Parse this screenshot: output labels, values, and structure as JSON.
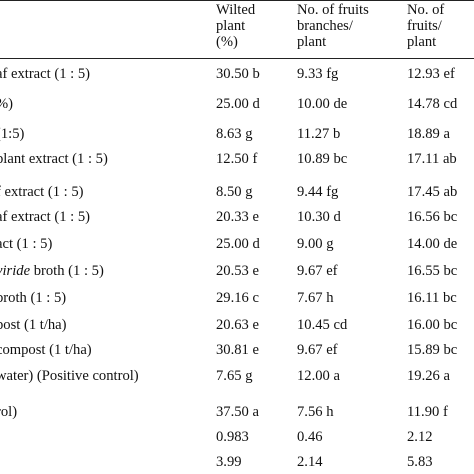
{
  "table": {
    "headers": [
      {
        "lines": [
          "Wilted",
          "plant",
          "(%)"
        ]
      },
      {
        "lines": [
          "No. of fruits",
          "branches/",
          "plant"
        ]
      },
      {
        "lines": [
          "No. of",
          "fruits/",
          "plant"
        ]
      }
    ],
    "rows": [
      {
        "treatment": "af extract (1 : 5)",
        "wilted": "30.50 b",
        "branches": "9.33 fg",
        "fruits": "12.93 ef"
      },
      {
        "treatment": "%)",
        "wilted": "25.00 d",
        "branches": "10.00 de",
        "fruits": "14.78 cd"
      },
      {
        "treatment": "(1:5)",
        "wilted": "8.63 g",
        "branches": "11.27 b",
        "fruits": "18.89 a"
      },
      {
        "treatment": " plant extract (1 : 5)",
        "wilted": "12.50 f",
        "branches": "10.89 bc",
        "fruits": "17.11 ab"
      },
      {
        "treatment": "f extract (1 : 5)",
        "wilted": "8.50 g",
        "branches": "9.44 fg",
        "fruits": "17.45 ab"
      },
      {
        "treatment": "af extract (1 : 5)",
        "wilted": "20.33 e",
        "branches": "10.30 d",
        "fruits": "16.56 bc"
      },
      {
        "treatment": "act (1 : 5)",
        "wilted": "25.00 d",
        "branches": "9.00 g",
        "fruits": "14.00 de"
      },
      {
        "treatment_italic": "viride",
        "treatment_rest": " broth (1 : 5)",
        "wilted": "20.53 e",
        "branches": "9.67 ef",
        "fruits": "16.55 bc"
      },
      {
        "treatment": "broth (1 : 5)",
        "wilted": "29.16 c",
        "branches": "7.67 h",
        "fruits": "16.11 bc"
      },
      {
        "treatment": "post (1 t/ha)",
        "wilted": "20.63 e",
        "branches": "10.45 cd",
        "fruits": "16.00 bc"
      },
      {
        "treatment": "compost (1 t/ha)",
        "wilted": "30.81 e",
        "branches": "9.67 ef",
        "fruits": "15.89 bc"
      },
      {
        "treatment": "water) (Positive control)",
        "wilted": "7.65 g",
        "branches": "12.00 a",
        "fruits": "19.26 a"
      },
      {
        "treatment": "rol)",
        "wilted": "37.50 a",
        "branches": "7.56 h",
        "fruits": "11.90 f"
      },
      {
        "treatment": "",
        "wilted": "0.983",
        "branches": "0.46",
        "fruits": "2.12"
      },
      {
        "treatment": "",
        "wilted": "3.99",
        "branches": "2.14",
        "fruits": "5.83"
      }
    ]
  }
}
